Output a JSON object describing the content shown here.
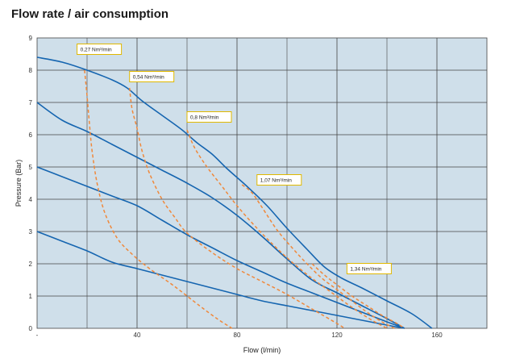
{
  "chart_data": {
    "type": "line",
    "title": "Flow rate / air consumption",
    "xlabel": "Flow (l/min)",
    "ylabel": "Pressure (Bar)",
    "xlim": [
      0,
      180
    ],
    "ylim": [
      0,
      9
    ],
    "x_ticks": [
      {
        "value": 0,
        "label": "-"
      },
      {
        "value": 40,
        "label": "40"
      },
      {
        "value": 80,
        "label": "80"
      },
      {
        "value": 120,
        "label": "120"
      },
      {
        "value": 160,
        "label": "160"
      }
    ],
    "y_ticks": [
      0,
      1,
      2,
      3,
      4,
      5,
      6,
      7,
      8,
      9
    ],
    "grid": true,
    "colors": {
      "plot_bg": "#cfdfea",
      "flow_line": "#1565b0",
      "air_line": "#f0883a",
      "grid": "#444444",
      "label_border": "#e0b800"
    },
    "flow_curves": [
      {
        "points": [
          [
            0,
            8.4
          ],
          [
            10,
            8.25
          ],
          [
            20,
            8.0
          ],
          [
            30,
            7.7
          ],
          [
            36,
            7.45
          ],
          [
            42,
            7.05
          ],
          [
            50,
            6.6
          ],
          [
            58,
            6.15
          ],
          [
            64,
            5.75
          ],
          [
            70,
            5.4
          ],
          [
            76,
            4.95
          ],
          [
            84,
            4.4
          ],
          [
            92,
            3.8
          ],
          [
            100,
            3.1
          ],
          [
            108,
            2.45
          ],
          [
            115,
            1.9
          ],
          [
            122,
            1.55
          ],
          [
            130,
            1.25
          ],
          [
            140,
            0.85
          ],
          [
            150,
            0.45
          ],
          [
            158,
            0.0
          ]
        ]
      },
      {
        "points": [
          [
            0,
            7.0
          ],
          [
            10,
            6.45
          ],
          [
            20,
            6.1
          ],
          [
            30,
            5.7
          ],
          [
            40,
            5.3
          ],
          [
            50,
            4.9
          ],
          [
            60,
            4.5
          ],
          [
            70,
            4.05
          ],
          [
            80,
            3.5
          ],
          [
            90,
            2.85
          ],
          [
            100,
            2.15
          ],
          [
            110,
            1.5
          ],
          [
            120,
            1.1
          ],
          [
            130,
            0.7
          ],
          [
            140,
            0.3
          ],
          [
            147,
            0.0
          ]
        ]
      },
      {
        "points": [
          [
            0,
            5.0
          ],
          [
            10,
            4.7
          ],
          [
            20,
            4.4
          ],
          [
            30,
            4.1
          ],
          [
            40,
            3.8
          ],
          [
            50,
            3.35
          ],
          [
            60,
            2.9
          ],
          [
            70,
            2.5
          ],
          [
            80,
            2.1
          ],
          [
            90,
            1.75
          ],
          [
            100,
            1.4
          ],
          [
            110,
            1.1
          ],
          [
            120,
            0.8
          ],
          [
            130,
            0.5
          ],
          [
            140,
            0.2
          ],
          [
            147,
            0.0
          ]
        ]
      },
      {
        "points": [
          [
            0,
            3.0
          ],
          [
            10,
            2.7
          ],
          [
            20,
            2.4
          ],
          [
            30,
            2.05
          ],
          [
            40,
            1.85
          ],
          [
            50,
            1.65
          ],
          [
            60,
            1.45
          ],
          [
            70,
            1.25
          ],
          [
            80,
            1.05
          ],
          [
            90,
            0.85
          ],
          [
            100,
            0.7
          ],
          [
            110,
            0.55
          ],
          [
            120,
            0.4
          ],
          [
            130,
            0.25
          ],
          [
            140,
            0.1
          ],
          [
            147,
            0.0
          ]
        ]
      }
    ],
    "air_curves": [
      {
        "label": "0,27 Nm³/min",
        "label_at": [
          16,
          8.65
        ],
        "points": [
          [
            19,
            8.0
          ],
          [
            20,
            7.2
          ],
          [
            21,
            6.3
          ],
          [
            22,
            5.5
          ],
          [
            24,
            4.5
          ],
          [
            27,
            3.6
          ],
          [
            32,
            2.8
          ],
          [
            38,
            2.3
          ],
          [
            45,
            1.85
          ],
          [
            55,
            1.3
          ],
          [
            65,
            0.7
          ],
          [
            72,
            0.3
          ],
          [
            78,
            0.0
          ]
        ]
      },
      {
        "label": "0,54 Nm³/min",
        "label_at": [
          37,
          7.8
        ],
        "points": [
          [
            37,
            7.45
          ],
          [
            38,
            6.8
          ],
          [
            40,
            6.2
          ],
          [
            42,
            5.5
          ],
          [
            45,
            4.8
          ],
          [
            50,
            4.0
          ],
          [
            55,
            3.45
          ],
          [
            60,
            2.95
          ],
          [
            70,
            2.35
          ],
          [
            80,
            1.85
          ],
          [
            90,
            1.45
          ],
          [
            100,
            1.05
          ],
          [
            110,
            0.6
          ],
          [
            120,
            0.15
          ],
          [
            123,
            0.0
          ]
        ]
      },
      {
        "label": "0,8 Nm³/min",
        "label_at": [
          60,
          6.55
        ],
        "points": [
          [
            60,
            6.15
          ],
          [
            63,
            5.6
          ],
          [
            68,
            5.0
          ],
          [
            74,
            4.4
          ],
          [
            80,
            3.8
          ],
          [
            88,
            3.1
          ],
          [
            95,
            2.55
          ],
          [
            102,
            2.05
          ],
          [
            110,
            1.55
          ],
          [
            118,
            1.1
          ],
          [
            126,
            0.65
          ],
          [
            134,
            0.25
          ],
          [
            140,
            0.0
          ]
        ]
      },
      {
        "label": "1,07 Nm³/min",
        "label_at": [
          88,
          4.6
        ],
        "points": [
          [
            82,
            4.45
          ],
          [
            86,
            4.2
          ],
          [
            90,
            3.75
          ],
          [
            96,
            3.05
          ],
          [
            102,
            2.5
          ],
          [
            108,
            2.0
          ],
          [
            114,
            1.55
          ],
          [
            120,
            1.2
          ],
          [
            126,
            0.85
          ],
          [
            132,
            0.5
          ],
          [
            138,
            0.2
          ],
          [
            143,
            0.0
          ]
        ]
      },
      {
        "label": "1,34 Nm³/min",
        "label_at": [
          124,
          1.85
        ],
        "points": [
          [
            110,
            2.0
          ],
          [
            115,
            1.65
          ],
          [
            120,
            1.35
          ],
          [
            126,
            1.0
          ],
          [
            132,
            0.7
          ],
          [
            138,
            0.4
          ],
          [
            144,
            0.15
          ],
          [
            147,
            0.0
          ]
        ]
      }
    ]
  }
}
